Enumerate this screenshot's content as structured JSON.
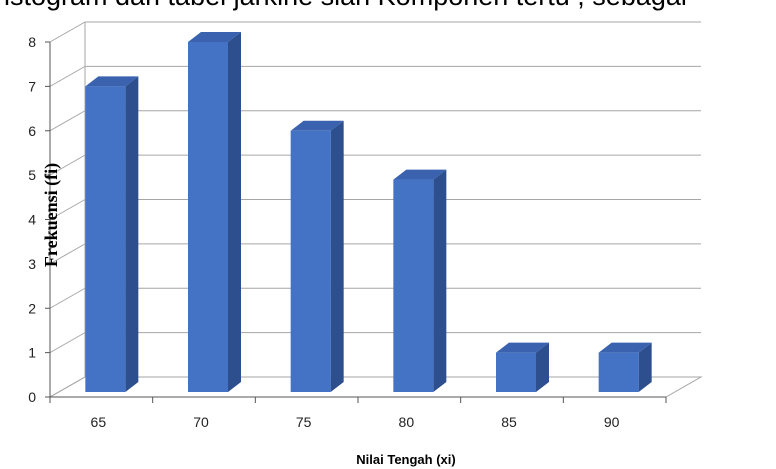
{
  "cut_text": "istogram dari tabel jarkine sian Komponen tertu , sebagai",
  "colors": {
    "bar_front": "#4472C4",
    "bar_side": "#2D4F8E",
    "bar_top": "#3A62AE",
    "grid": "#A6A6A6"
  },
  "chart_data": {
    "type": "bar",
    "title": "",
    "xlabel": "Nilai Tengah (xi)",
    "ylabel": "Frekuensi (fi)",
    "categories": [
      "65",
      "70",
      "75",
      "80",
      "85",
      "90"
    ],
    "values": [
      7,
      8,
      6,
      4.9,
      1,
      1
    ],
    "ylim": [
      0,
      8
    ],
    "yticks": [
      "0",
      "1",
      "2",
      "3",
      "4",
      "5",
      "6",
      "7",
      "8"
    ],
    "grid": true,
    "legend": "none",
    "style": "3d-column"
  }
}
